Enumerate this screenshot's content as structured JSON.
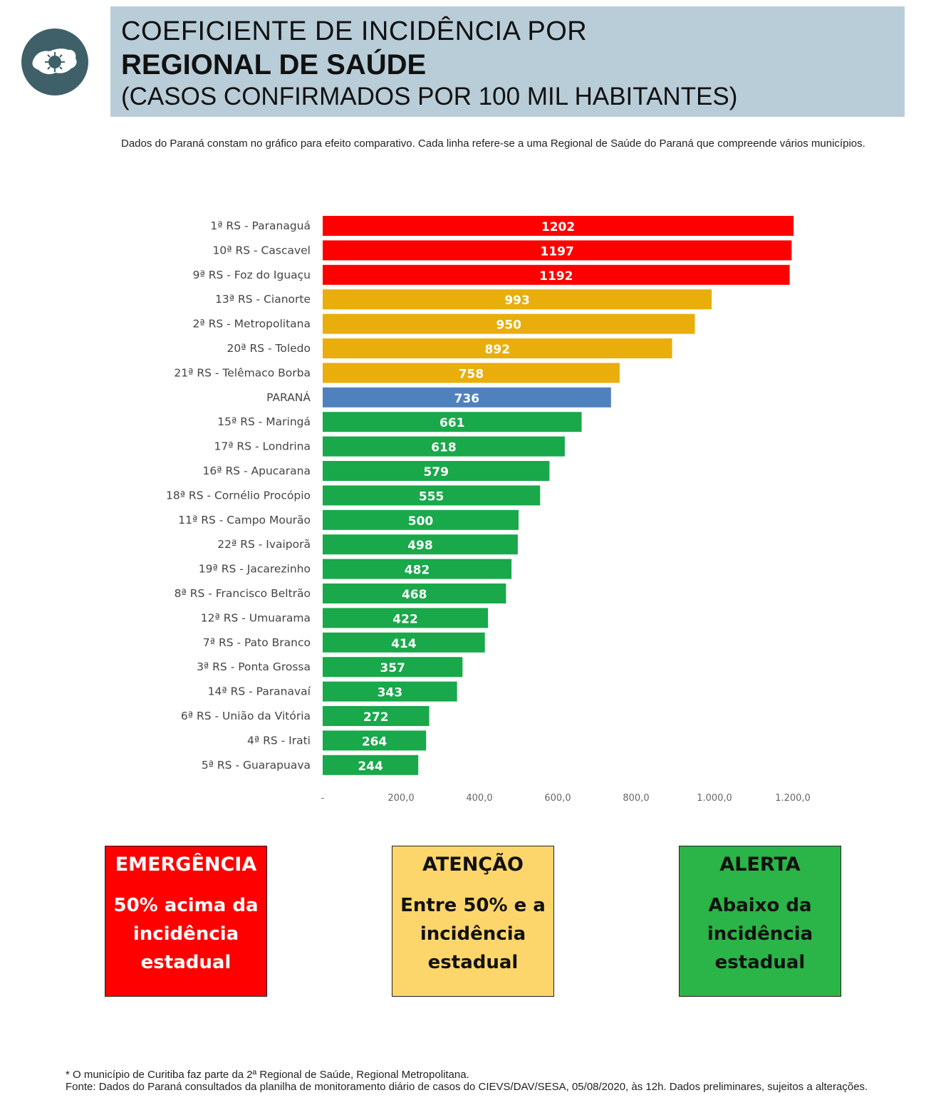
{
  "header": {
    "title_line1": "COEFICIENTE DE INCIDÊNCIA POR",
    "title_line2": "REGIONAL DE SAÚDE",
    "title_line3": "(CASOS CONFIRMADOS POR 100 MIL HABITANTES)",
    "logo_icon": "parana-map-virus-icon"
  },
  "intro": "Dados do Paraná constam no gráfico para efeito comparativo. Cada linha refere-se a uma Regional de Saúde do Paraná que compreende vários municípios.",
  "chart_data": {
    "type": "bar",
    "orientation": "horizontal",
    "categories": [
      "1ª RS - Paranaguá",
      "10ª RS - Cascavel",
      "9ª RS - Foz do Iguaçu",
      "13ª RS - Cianorte",
      "2ª RS - Metropolitana",
      "20ª RS - Toledo",
      "21ª RS - Telêmaco Borba",
      "PARANÁ",
      "15ª RS - Maringá",
      "17ª RS - Londrina",
      "16ª RS - Apucarana",
      "18ª RS - Cornélio Procópio",
      "11ª RS - Campo Mourão",
      "22ª RS - Ivaiporã",
      "19ª RS - Jacarezinho",
      "8ª RS - Francisco Beltrão",
      "12ª RS - Umuarama",
      "7ª RS - Pato Branco",
      "3ª RS - Ponta Grossa",
      "14ª RS - Paranavaí",
      "6ª RS - União da Vitória",
      "4ª RS - Irati",
      "5ª RS - Guarapuava"
    ],
    "values": [
      1202,
      1197,
      1192,
      993,
      950,
      892,
      758,
      736,
      661,
      618,
      579,
      555,
      500,
      498,
      482,
      468,
      422,
      414,
      357,
      343,
      272,
      264,
      244
    ],
    "value_labels": [
      "1202",
      "1197",
      "1192",
      "993",
      "950",
      "892",
      "758",
      "736",
      "661",
      "618",
      "579",
      "555",
      "500",
      "498",
      "482",
      "468",
      "422",
      "414",
      "357",
      "343",
      "272",
      "264",
      "244"
    ],
    "bar_status": [
      "emergencia",
      "emergencia",
      "emergencia",
      "atencao",
      "atencao",
      "atencao",
      "atencao",
      "parana",
      "alerta",
      "alerta",
      "alerta",
      "alerta",
      "alerta",
      "alerta",
      "alerta",
      "alerta",
      "alerta",
      "alerta",
      "alerta",
      "alerta",
      "alerta",
      "alerta",
      "alerta"
    ],
    "colors": {
      "emergencia": "#ff0000",
      "atencao": "#e9ae0b",
      "parana": "#4f81bd",
      "alerta": "#19a84a"
    },
    "x_ticks": [
      0,
      200,
      400,
      600,
      800,
      1000,
      1200
    ],
    "x_tick_labels": [
      "-",
      "200,0",
      "400,0",
      "600,0",
      "800,0",
      "1.000,0",
      "1.200,0"
    ],
    "xlim": [
      0,
      1200
    ],
    "grid": false
  },
  "legend": [
    {
      "title": "EMERGÊNCIA",
      "desc": "50% acima da incidência estadual",
      "bg": "#ff0000",
      "fg": "#ffffff"
    },
    {
      "title": "ATENÇÃO",
      "desc": "Entre 50% e a incidência estadual",
      "bg": "#fcd66a",
      "fg": "#111111"
    },
    {
      "title": "ALERTA",
      "desc": "Abaixo da incidência estadual",
      "bg": "#2bb447",
      "fg": "#111111"
    }
  ],
  "footer": {
    "note": "* O município de Curitiba faz parte da 2ª Regional de Saúde, Regional Metropolitana.",
    "source": "Fonte: Dados do Paraná consultados da planilha de monitoramento diário de casos do CIEVS/DAV/SESA, 05/08/2020, às 12h. Dados preliminares, sujeitos a alterações."
  }
}
